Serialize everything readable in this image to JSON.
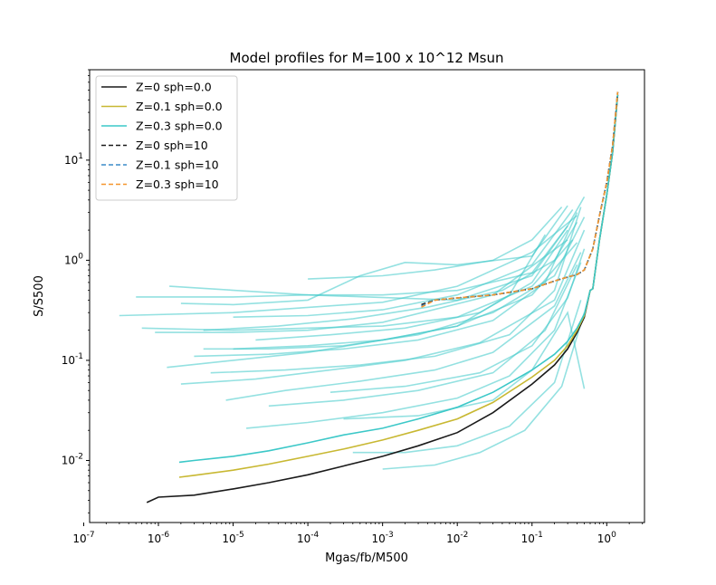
{
  "chart_data": {
    "type": "line",
    "title": "Model profiles for M=100 x 10^12 Msun",
    "xlabel": "Mgas/fb/M500",
    "ylabel": "S/S500",
    "xscale": "log",
    "yscale": "log",
    "xlim": [
      1.2e-07,
      3.2
    ],
    "ylim": [
      0.0024,
      80
    ],
    "xticks": [
      {
        "value": 1e-07,
        "label": "10^-7"
      },
      {
        "value": 1e-06,
        "label": "10^-6"
      },
      {
        "value": 1e-05,
        "label": "10^-5"
      },
      {
        "value": 0.0001,
        "label": "10^-4"
      },
      {
        "value": 0.001,
        "label": "10^-3"
      },
      {
        "value": 0.01,
        "label": "10^-2"
      },
      {
        "value": 0.1,
        "label": "10^-1"
      },
      {
        "value": 1,
        "label": "10^0"
      }
    ],
    "yticks": [
      {
        "value": 0.01,
        "label": "10^-2"
      },
      {
        "value": 0.1,
        "label": "10^-1"
      },
      {
        "value": 1,
        "label": "10^0"
      },
      {
        "value": 10,
        "label": "10^1"
      }
    ],
    "legend_position": "top-left",
    "grid": false,
    "series": [
      {
        "name": "Z=0 sph=0.0",
        "color": "#1a1a1a",
        "dash": "solid",
        "x": [
          7e-07,
          1e-06,
          3e-06,
          1e-05,
          3e-05,
          0.0001,
          0.0003,
          0.001,
          0.003,
          0.01,
          0.03,
          0.1,
          0.2,
          0.3,
          0.4,
          0.5,
          0.6,
          0.65,
          0.8,
          1.0,
          1.2,
          1.4
        ],
        "y": [
          0.0038,
          0.0043,
          0.0045,
          0.0052,
          0.006,
          0.0072,
          0.0088,
          0.011,
          0.014,
          0.019,
          0.03,
          0.058,
          0.09,
          0.13,
          0.19,
          0.27,
          0.5,
          0.52,
          1.6,
          4.5,
          12,
          45
        ]
      },
      {
        "name": "Z=0.1 sph=0.0",
        "color": "#c8b832",
        "dash": "solid",
        "x": [
          1.9e-06,
          3e-06,
          1e-05,
          3e-05,
          0.0001,
          0.0003,
          0.001,
          0.003,
          0.01,
          0.03,
          0.1,
          0.2,
          0.3,
          0.4,
          0.5,
          0.6,
          0.65,
          0.8,
          1.0,
          1.2,
          1.4
        ],
        "y": [
          0.0068,
          0.0071,
          0.008,
          0.0092,
          0.011,
          0.013,
          0.016,
          0.02,
          0.026,
          0.038,
          0.068,
          0.1,
          0.14,
          0.2,
          0.28,
          0.5,
          0.52,
          1.6,
          4.5,
          12,
          45
        ]
      },
      {
        "name": "Z=0.3 sph=0.0",
        "color": "#3cc8c8",
        "dash": "solid",
        "x": [
          1.9e-06,
          3e-06,
          1e-05,
          3e-05,
          0.0001,
          0.0003,
          0.001,
          0.003,
          0.01,
          0.03,
          0.1,
          0.2,
          0.3,
          0.4,
          0.5,
          0.6,
          0.65,
          0.8,
          1.0,
          1.2,
          1.4
        ],
        "y": [
          0.0096,
          0.01,
          0.011,
          0.0125,
          0.015,
          0.018,
          0.021,
          0.026,
          0.034,
          0.048,
          0.08,
          0.115,
          0.155,
          0.21,
          0.29,
          0.5,
          0.52,
          1.6,
          4.5,
          12,
          45
        ]
      },
      {
        "name": "Z=0 sph=10",
        "color": "#1a1a1a",
        "dash": "dashed",
        "x": [
          0.0033,
          0.005,
          0.01,
          0.03,
          0.1,
          0.2,
          0.3,
          0.4,
          0.5,
          0.65,
          0.8,
          1.0,
          1.2,
          1.4
        ],
        "y": [
          0.36,
          0.4,
          0.42,
          0.45,
          0.52,
          0.62,
          0.68,
          0.72,
          0.8,
          1.3,
          2.8,
          6.0,
          14,
          48
        ]
      },
      {
        "name": "Z=0.1 sph=10",
        "color": "#3a8cc8",
        "dash": "dashed",
        "x": [
          0.0033,
          0.005,
          0.01,
          0.03,
          0.1,
          0.2,
          0.3,
          0.4,
          0.5,
          0.65,
          0.8,
          1.0,
          1.2,
          1.4
        ],
        "y": [
          0.35,
          0.4,
          0.42,
          0.45,
          0.52,
          0.62,
          0.68,
          0.72,
          0.8,
          1.3,
          2.8,
          6.0,
          14,
          48
        ]
      },
      {
        "name": "Z=0.3 sph=10",
        "color": "#f5962d",
        "dash": "dashed",
        "x": [
          0.0033,
          0.005,
          0.01,
          0.03,
          0.1,
          0.2,
          0.3,
          0.4,
          0.5,
          0.65,
          0.8,
          1.0,
          1.2,
          1.4
        ],
        "y": [
          0.34,
          0.4,
          0.42,
          0.45,
          0.52,
          0.62,
          0.68,
          0.72,
          0.8,
          1.3,
          2.8,
          6.0,
          14,
          48
        ]
      }
    ],
    "background_profiles": [
      {
        "x": [
          1.4e-06,
          0.0001,
          0.01,
          0.1,
          0.3,
          0.5
        ],
        "y": [
          0.55,
          0.45,
          0.4,
          0.7,
          2.2,
          4.3
        ]
      },
      {
        "x": [
          3e-07,
          1e-05,
          0.001,
          0.01,
          0.1,
          0.4
        ],
        "y": [
          0.28,
          0.3,
          0.38,
          0.55,
          1.2,
          2.8
        ]
      },
      {
        "x": [
          9e-07,
          1e-05,
          0.0001,
          0.001,
          0.03,
          0.3
        ],
        "y": [
          0.19,
          0.19,
          0.2,
          0.24,
          0.45,
          1.6
        ]
      },
      {
        "x": [
          5e-07,
          1e-05,
          0.0001,
          0.001,
          0.01,
          0.1,
          0.3
        ],
        "y": [
          0.43,
          0.43,
          0.45,
          0.45,
          0.5,
          0.75,
          2.2
        ]
      },
      {
        "x": [
          2e-06,
          1e-05,
          0.0001,
          0.0005,
          0.002,
          0.01,
          0.1,
          0.3
        ],
        "y": [
          0.37,
          0.36,
          0.4,
          0.7,
          0.95,
          0.9,
          1.1,
          3.5
        ]
      },
      {
        "x": [
          4e-06,
          3e-05,
          0.0003,
          0.003,
          0.03,
          0.2,
          0.5
        ],
        "y": [
          0.13,
          0.13,
          0.14,
          0.18,
          0.3,
          0.7,
          2.7
        ]
      },
      {
        "x": [
          1.3e-06,
          1e-05,
          0.0001,
          0.001,
          0.01,
          0.1,
          0.4
        ],
        "y": [
          0.085,
          0.1,
          0.12,
          0.16,
          0.22,
          0.45,
          1.5
        ]
      },
      {
        "x": [
          2e-06,
          2e-05,
          0.0002,
          0.002,
          0.02,
          0.2,
          0.5
        ],
        "y": [
          0.058,
          0.065,
          0.08,
          0.1,
          0.15,
          0.4,
          2.0
        ]
      },
      {
        "x": [
          8e-06,
          5e-05,
          0.0005,
          0.005,
          0.03,
          0.2,
          0.45
        ],
        "y": [
          0.04,
          0.05,
          0.062,
          0.08,
          0.12,
          0.35,
          1.2
        ]
      },
      {
        "x": [
          1.5e-05,
          0.0001,
          0.001,
          0.01,
          0.05,
          0.2,
          0.45
        ],
        "y": [
          0.021,
          0.024,
          0.03,
          0.042,
          0.07,
          0.2,
          0.95
        ]
      },
      {
        "x": [
          0.0004,
          0.002,
          0.01,
          0.05,
          0.2,
          0.45
        ],
        "y": [
          0.012,
          0.012,
          0.014,
          0.022,
          0.06,
          0.4
        ]
      },
      {
        "x": [
          0.001,
          0.005,
          0.02,
          0.08,
          0.25,
          0.5
        ],
        "y": [
          0.0082,
          0.009,
          0.012,
          0.02,
          0.055,
          0.3
        ]
      },
      {
        "x": [
          0.0003,
          0.003,
          0.03,
          0.1,
          0.3,
          0.5
        ],
        "y": [
          0.026,
          0.028,
          0.04,
          0.08,
          0.3,
          0.052
        ]
      },
      {
        "x": [
          4e-06,
          4e-05,
          0.0004,
          0.004,
          0.04,
          0.2,
          0.4
        ],
        "y": [
          0.2,
          0.22,
          0.26,
          0.34,
          0.5,
          1.0,
          2.4
        ]
      },
      {
        "x": [
          6e-07,
          1e-05,
          0.0001,
          0.001,
          0.01,
          0.1,
          0.35
        ],
        "y": [
          0.21,
          0.2,
          0.21,
          0.22,
          0.27,
          0.55,
          1.6
        ]
      },
      {
        "x": [
          3e-06,
          3e-05,
          0.0003,
          0.003,
          0.03,
          0.15,
          0.4
        ],
        "y": [
          0.11,
          0.115,
          0.13,
          0.16,
          0.25,
          0.6,
          3.0
        ]
      },
      {
        "x": [
          5e-06,
          5e-05,
          0.0005,
          0.005,
          0.05,
          0.2,
          0.45
        ],
        "y": [
          0.075,
          0.08,
          0.09,
          0.11,
          0.18,
          0.5,
          3.4
        ]
      },
      {
        "x": [
          2e-05,
          0.0002,
          0.002,
          0.02,
          0.1,
          0.3
        ],
        "y": [
          0.16,
          0.18,
          0.21,
          0.3,
          0.6,
          2.0
        ]
      },
      {
        "x": [
          1e-05,
          0.0001,
          0.001,
          0.01,
          0.1,
          0.35
        ],
        "y": [
          0.27,
          0.28,
          0.32,
          0.45,
          0.9,
          3.2
        ]
      },
      {
        "x": [
          3e-05,
          0.0003,
          0.003,
          0.03,
          0.15,
          0.4
        ],
        "y": [
          0.035,
          0.04,
          0.05,
          0.075,
          0.2,
          0.9
        ]
      },
      {
        "x": [
          1e-05,
          0.0001,
          0.001,
          0.01,
          0.05,
          0.15
        ],
        "y": [
          0.13,
          0.14,
          0.16,
          0.22,
          0.45,
          1.8
        ]
      },
      {
        "x": [
          0.0002,
          0.002,
          0.02,
          0.1,
          0.3,
          0.5
        ],
        "y": [
          0.048,
          0.055,
          0.075,
          0.14,
          0.42,
          1.3
        ]
      },
      {
        "x": [
          0.0001,
          0.001,
          0.005,
          0.03,
          0.1,
          0.25
        ],
        "y": [
          0.65,
          0.7,
          0.8,
          1.0,
          1.6,
          3.4
        ]
      }
    ]
  }
}
